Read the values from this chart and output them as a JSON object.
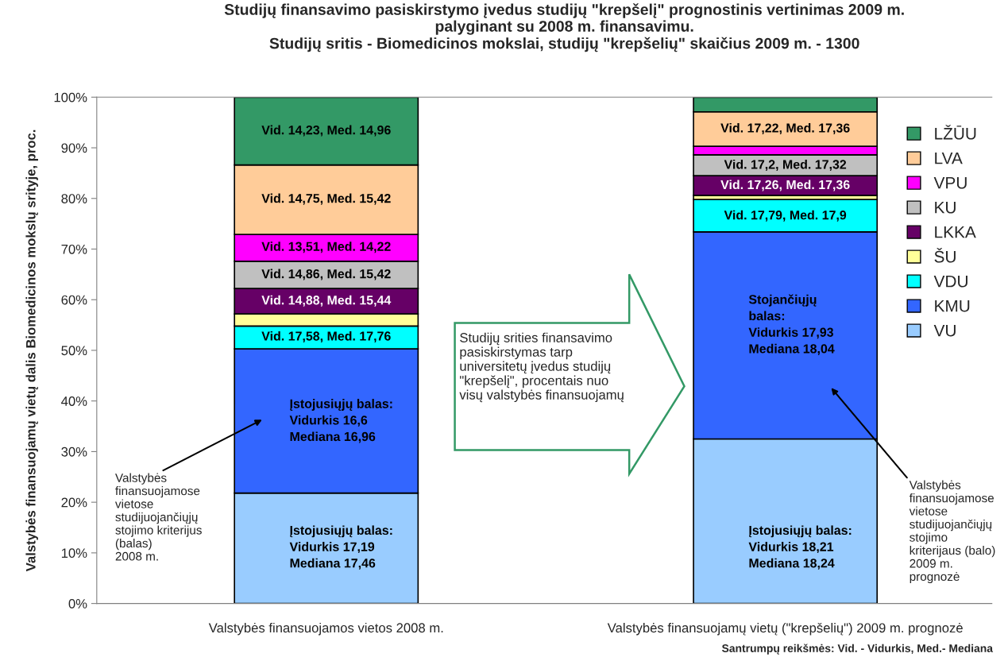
{
  "chart_data": {
    "type": "bar",
    "stacked": true,
    "title": "Studijų finansavimo pasiskirstymo įvedus studijų \"krepšelį\" prognostinis vertinimas 2009 m.\npalyginant su 2008 m. finansavimu.\nStudijų sritis - Biomedicinos mokslai, studijų \"krepšelių\" skaičius 2009 m. - 1300",
    "ylabel": "Valstybės finansuojamų vietų dalis Biomedicinos mokslų srityje, proc.",
    "categories": [
      "Valstybės finansuojamos vietos 2008 m.",
      "Valstybės finansuojamų vietų (\"krepšelių\") 2009 m. prognozė"
    ],
    "series": [
      {
        "name": "VU",
        "color": "#99ccff",
        "values": [
          21.8,
          32.5
        ]
      },
      {
        "name": "KMU",
        "color": "#3366ff",
        "values": [
          28.5,
          40.9
        ]
      },
      {
        "name": "VDU",
        "color": "#00ffff",
        "values": [
          4.5,
          6.4
        ]
      },
      {
        "name": "ŠU",
        "color": "#ffff99",
        "values": [
          2.4,
          0.8
        ]
      },
      {
        "name": "LKKA",
        "color": "#660066",
        "values": [
          5.0,
          3.9
        ]
      },
      {
        "name": "KU",
        "color": "#c0c0c0",
        "values": [
          5.4,
          4.1
        ]
      },
      {
        "name": "VPU",
        "color": "#ff00ff",
        "values": [
          5.3,
          1.7
        ]
      },
      {
        "name": "LVA",
        "color": "#ffcc99",
        "values": [
          13.7,
          6.8
        ]
      },
      {
        "name": "LŽŪU",
        "color": "#339966",
        "values": [
          13.4,
          2.9
        ]
      }
    ],
    "ylim": [
      0,
      100
    ],
    "yticks": [
      {
        "value": 0,
        "label": "0%"
      },
      {
        "value": 10,
        "label": "10%"
      },
      {
        "value": 20,
        "label": "20%"
      },
      {
        "value": 30,
        "label": "30%"
      },
      {
        "value": 40,
        "label": "40%"
      },
      {
        "value": 50,
        "label": "50%"
      },
      {
        "value": 60,
        "label": "60%"
      },
      {
        "value": 70,
        "label": "70%"
      },
      {
        "value": 80,
        "label": "80%"
      },
      {
        "value": 90,
        "label": "90%"
      },
      {
        "value": 100,
        "label": "100%"
      }
    ],
    "grid": false,
    "legend": "upper right",
    "annotations": [
      "Vid. 14,23, Med. 14,96",
      "Vid. 14,75, Med. 15,42",
      "Vid. 13,51, Med. 14,22",
      "Vid. 14,86, Med. 15,42",
      "Vid. 14,88, Med. 15,44",
      "Vid. 17,58, Med. 17,76",
      "Įstojusiųjų balas:\nVidurkis 16,6\nMediana 16,96",
      "Įstojusiųjų balas:\nVidurkis 17,19\nMediana 17,46",
      "Vid. 17,22, Med. 17,36",
      "Vid. 17,2, Med. 17,32",
      "Vid. 17,26, Med. 17,36",
      "Vid. 17,79, Med. 17,9",
      "Stojančiųjų\nbalas:\nVidurkis 17,93\nMediana 18,04",
      "Įstojusiųjų balas:\nVidurkis 18,21\nMediana 18,24",
      "Valstybės\nfinansuojamose\nvietose\nstudijuojančiųjų\nstojimo kriterijus\n(balas)\n2008 m.",
      "Valstybės\nfinansuojamose\nvietose\nstudijuojančiųjų\nstojimo\nkriterijaus (balo)\n2009 m.\nprognozė",
      "Studijų srities finansavimo\npasiskirstymas tarp\nuniversitetų įvedus studijų\n\"krepšelį\", procentais nuo\nvisų valstybės finansuojamų",
      "Santrumpų reikšmės: Vid. - Vidurkis, Med.- Mediana"
    ]
  }
}
